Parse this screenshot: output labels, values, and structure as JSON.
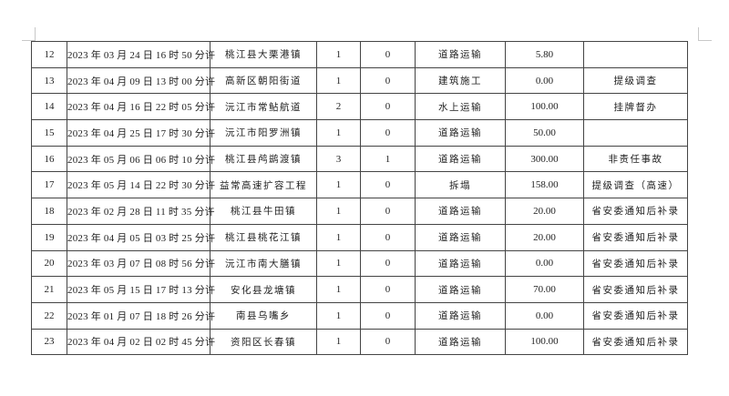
{
  "rows": [
    {
      "no": "12",
      "time": "2023 年 03 月 24 日 16 时 50 分许",
      "place": "桃江县大栗港镇",
      "deaths": "1",
      "injured": "0",
      "type": "道路运输",
      "loss": "5.80",
      "note": ""
    },
    {
      "no": "13",
      "time": "2023 年 04 月 09 日 13 时 00 分许",
      "place": "高新区朝阳街道",
      "deaths": "1",
      "injured": "0",
      "type": "建筑施工",
      "loss": "0.00",
      "note": "提级调查"
    },
    {
      "no": "14",
      "time": "2023 年 04 月 16 日 22 时 05 分许",
      "place": "沅江市常鲇航道",
      "deaths": "2",
      "injured": "0",
      "type": "水上运输",
      "loss": "100.00",
      "note": "挂牌督办"
    },
    {
      "no": "15",
      "time": "2023 年 04 月 25 日 17 时 30 分许",
      "place": "沅江市阳罗洲镇",
      "deaths": "1",
      "injured": "0",
      "type": "道路运输",
      "loss": "50.00",
      "note": ""
    },
    {
      "no": "16",
      "time": "2023 年 05 月 06 日 06 时 10 分许",
      "place": "桃江县鸬鹚渡镇",
      "deaths": "3",
      "injured": "1",
      "type": "道路运输",
      "loss": "300.00",
      "note": "非责任事故"
    },
    {
      "no": "17",
      "time": "2023 年 05 月 14 日 22 时 30 分许",
      "place": "益常高速扩容工程",
      "deaths": "1",
      "injured": "0",
      "type": "拆塌",
      "loss": "158.00",
      "note": "提级调查（高速）"
    },
    {
      "no": "18",
      "time": "2023 年 02 月 28 日 11 时 35 分许",
      "place": "桃江县牛田镇",
      "deaths": "1",
      "injured": "0",
      "type": "道路运输",
      "loss": "20.00",
      "note": "省安委通知后补录"
    },
    {
      "no": "19",
      "time": "2023 年 04 月 05 日 03 时 25 分许",
      "place": "桃江县桃花江镇",
      "deaths": "1",
      "injured": "0",
      "type": "道路运输",
      "loss": "20.00",
      "note": "省安委通知后补录"
    },
    {
      "no": "20",
      "time": "2023 年 03 月 07 日 08 时 56 分许",
      "place": "沅江市南大膳镇",
      "deaths": "1",
      "injured": "0",
      "type": "道路运输",
      "loss": "0.00",
      "note": "省安委通知后补录"
    },
    {
      "no": "21",
      "time": "2023 年 05 月 15 日 17 时 13 分许",
      "place": "安化县龙塘镇",
      "deaths": "1",
      "injured": "0",
      "type": "道路运输",
      "loss": "70.00",
      "note": "省安委通知后补录"
    },
    {
      "no": "22",
      "time": "2023 年 01 月 07 日 18 时 26 分许",
      "place": "南县乌嘴乡",
      "deaths": "1",
      "injured": "0",
      "type": "道路运输",
      "loss": "0.00",
      "note": "省安委通知后补录"
    },
    {
      "no": "23",
      "time": "2023 年 04 月 02 日 02 时 45 分许",
      "place": "资阳区长春镇",
      "deaths": "1",
      "injured": "0",
      "type": "道路运输",
      "loss": "100.00",
      "note": "省安委通知后补录"
    }
  ]
}
